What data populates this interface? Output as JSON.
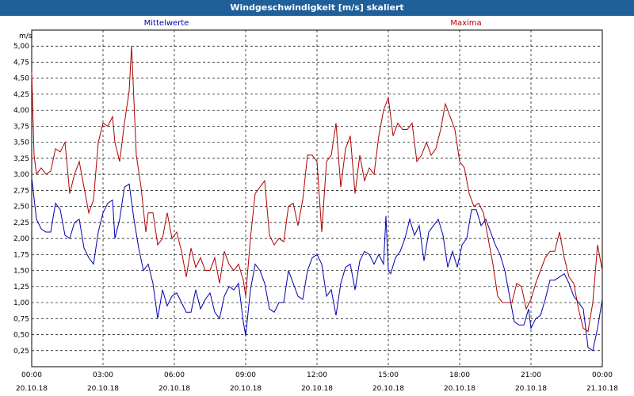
{
  "window": {
    "title": "Windgeschwindigkeit [m/s] skaliert"
  },
  "chart_data": {
    "type": "line",
    "title": "Windgeschwindigkeit [m/s] skaliert",
    "ylabel": "m/s",
    "ylim": [
      0,
      5.25
    ],
    "yticks": [
      0.25,
      0.5,
      0.75,
      1.0,
      1.25,
      1.5,
      1.75,
      2.0,
      2.25,
      2.5,
      2.75,
      3.0,
      3.25,
      3.5,
      3.75,
      4.0,
      4.25,
      4.5,
      4.75,
      5.0
    ],
    "ytick_labels": [
      "0,25",
      "0,50",
      "0,75",
      "1,00",
      "1,25",
      "1,50",
      "1,75",
      "2,00",
      "2,25",
      "2,50",
      "2,75",
      "3,00",
      "3,25",
      "3,50",
      "3,75",
      "4,00",
      "4,25",
      "4,50",
      "4,75",
      "5,00"
    ],
    "xlim": [
      0,
      24
    ],
    "xticks": [
      0,
      3,
      6,
      9,
      12,
      15,
      18,
      21,
      24
    ],
    "xtick_labels": [
      "00:00",
      "03:00",
      "06:00",
      "09:00",
      "12:00",
      "15:00",
      "18:00",
      "21:00",
      "00:00"
    ],
    "xtick_dates": [
      "20.10.18",
      "20.10.18",
      "20.10.18",
      "20.10.18",
      "20.10.18",
      "20.10.18",
      "20.10.18",
      "20.10.18",
      "21.10.18"
    ],
    "grid": true,
    "series": [
      {
        "name": "Mittelwerte",
        "color": "#0000b0",
        "points": [
          [
            0,
            2.95
          ],
          [
            0.2,
            2.3
          ],
          [
            0.4,
            2.15
          ],
          [
            0.6,
            2.1
          ],
          [
            0.8,
            2.1
          ],
          [
            1.0,
            2.55
          ],
          [
            1.2,
            2.45
          ],
          [
            1.4,
            2.05
          ],
          [
            1.6,
            2.0
          ],
          [
            1.8,
            2.25
          ],
          [
            2.0,
            2.3
          ],
          [
            2.2,
            1.85
          ],
          [
            2.4,
            1.7
          ],
          [
            2.6,
            1.6
          ],
          [
            2.8,
            2.1
          ],
          [
            3.0,
            2.4
          ],
          [
            3.2,
            2.55
          ],
          [
            3.4,
            2.6
          ],
          [
            3.5,
            2.0
          ],
          [
            3.7,
            2.3
          ],
          [
            3.9,
            2.8
          ],
          [
            4.1,
            2.85
          ],
          [
            4.3,
            2.3
          ],
          [
            4.5,
            1.85
          ],
          [
            4.7,
            1.5
          ],
          [
            4.9,
            1.6
          ],
          [
            5.1,
            1.3
          ],
          [
            5.3,
            0.75
          ],
          [
            5.5,
            1.2
          ],
          [
            5.7,
            0.95
          ],
          [
            5.9,
            1.1
          ],
          [
            6.1,
            1.15
          ],
          [
            6.3,
            1.0
          ],
          [
            6.5,
            0.85
          ],
          [
            6.7,
            0.85
          ],
          [
            6.9,
            1.2
          ],
          [
            7.1,
            0.9
          ],
          [
            7.3,
            1.05
          ],
          [
            7.5,
            1.15
          ],
          [
            7.7,
            0.85
          ],
          [
            7.9,
            0.75
          ],
          [
            8.1,
            1.1
          ],
          [
            8.3,
            1.25
          ],
          [
            8.5,
            1.2
          ],
          [
            8.7,
            1.3
          ],
          [
            8.9,
            0.7
          ],
          [
            9.0,
            0.48
          ],
          [
            9.2,
            1.2
          ],
          [
            9.4,
            1.6
          ],
          [
            9.6,
            1.5
          ],
          [
            9.8,
            1.3
          ],
          [
            10.0,
            0.9
          ],
          [
            10.2,
            0.85
          ],
          [
            10.4,
            1.0
          ],
          [
            10.6,
            1.0
          ],
          [
            10.8,
            1.5
          ],
          [
            11.0,
            1.3
          ],
          [
            11.2,
            1.1
          ],
          [
            11.4,
            1.05
          ],
          [
            11.6,
            1.5
          ],
          [
            11.8,
            1.7
          ],
          [
            12.0,
            1.75
          ],
          [
            12.2,
            1.6
          ],
          [
            12.4,
            1.1
          ],
          [
            12.6,
            1.2
          ],
          [
            12.8,
            0.8
          ],
          [
            13.0,
            1.3
          ],
          [
            13.2,
            1.55
          ],
          [
            13.4,
            1.6
          ],
          [
            13.6,
            1.2
          ],
          [
            13.8,
            1.65
          ],
          [
            14.0,
            1.8
          ],
          [
            14.2,
            1.75
          ],
          [
            14.4,
            1.6
          ],
          [
            14.6,
            1.75
          ],
          [
            14.8,
            1.6
          ],
          [
            14.9,
            2.35
          ],
          [
            15.0,
            1.5
          ],
          [
            15.1,
            1.45
          ],
          [
            15.3,
            1.7
          ],
          [
            15.5,
            1.8
          ],
          [
            15.7,
            2.0
          ],
          [
            15.9,
            2.3
          ],
          [
            16.1,
            2.05
          ],
          [
            16.3,
            2.2
          ],
          [
            16.5,
            1.65
          ],
          [
            16.7,
            2.1
          ],
          [
            16.9,
            2.2
          ],
          [
            17.1,
            2.3
          ],
          [
            17.3,
            2.05
          ],
          [
            17.5,
            1.55
          ],
          [
            17.7,
            1.8
          ],
          [
            17.9,
            1.55
          ],
          [
            18.1,
            1.9
          ],
          [
            18.3,
            2.0
          ],
          [
            18.5,
            2.45
          ],
          [
            18.7,
            2.45
          ],
          [
            18.9,
            2.2
          ],
          [
            19.1,
            2.3
          ],
          [
            19.3,
            2.1
          ],
          [
            19.5,
            1.9
          ],
          [
            19.7,
            1.75
          ],
          [
            19.9,
            1.5
          ],
          [
            20.1,
            1.1
          ],
          [
            20.3,
            0.7
          ],
          [
            20.5,
            0.65
          ],
          [
            20.7,
            0.65
          ],
          [
            20.9,
            0.9
          ],
          [
            21.0,
            0.6
          ],
          [
            21.2,
            0.75
          ],
          [
            21.4,
            0.8
          ],
          [
            21.6,
            1.05
          ],
          [
            21.8,
            1.35
          ],
          [
            22.0,
            1.35
          ],
          [
            22.2,
            1.4
          ],
          [
            22.4,
            1.45
          ],
          [
            22.6,
            1.3
          ],
          [
            22.8,
            1.1
          ],
          [
            23.0,
            1.0
          ],
          [
            23.2,
            0.9
          ],
          [
            23.4,
            0.3
          ],
          [
            23.6,
            0.25
          ],
          [
            23.8,
            0.6
          ],
          [
            24.0,
            1.05
          ]
        ]
      },
      {
        "name": "Maxima",
        "color": "#b00000",
        "points": [
          [
            0,
            4.6
          ],
          [
            0.1,
            3.3
          ],
          [
            0.2,
            3.0
          ],
          [
            0.4,
            3.1
          ],
          [
            0.6,
            3.0
          ],
          [
            0.8,
            3.05
          ],
          [
            1.0,
            3.4
          ],
          [
            1.2,
            3.35
          ],
          [
            1.4,
            3.5
          ],
          [
            1.6,
            2.7
          ],
          [
            1.8,
            3.0
          ],
          [
            2.0,
            3.2
          ],
          [
            2.2,
            2.8
          ],
          [
            2.4,
            2.4
          ],
          [
            2.6,
            2.6
          ],
          [
            2.8,
            3.5
          ],
          [
            3.0,
            3.8
          ],
          [
            3.2,
            3.75
          ],
          [
            3.4,
            3.9
          ],
          [
            3.5,
            3.5
          ],
          [
            3.7,
            3.2
          ],
          [
            3.9,
            3.8
          ],
          [
            4.1,
            4.3
          ],
          [
            4.2,
            5.0
          ],
          [
            4.4,
            3.3
          ],
          [
            4.6,
            2.8
          ],
          [
            4.8,
            2.1
          ],
          [
            4.9,
            2.4
          ],
          [
            5.1,
            2.4
          ],
          [
            5.3,
            1.9
          ],
          [
            5.5,
            2.0
          ],
          [
            5.7,
            2.4
          ],
          [
            5.9,
            2.0
          ],
          [
            6.1,
            2.1
          ],
          [
            6.3,
            1.8
          ],
          [
            6.5,
            1.4
          ],
          [
            6.7,
            1.85
          ],
          [
            6.9,
            1.55
          ],
          [
            7.1,
            1.7
          ],
          [
            7.3,
            1.5
          ],
          [
            7.5,
            1.5
          ],
          [
            7.7,
            1.7
          ],
          [
            7.9,
            1.3
          ],
          [
            8.1,
            1.8
          ],
          [
            8.3,
            1.6
          ],
          [
            8.5,
            1.5
          ],
          [
            8.7,
            1.6
          ],
          [
            8.9,
            1.35
          ],
          [
            9.0,
            1.1
          ],
          [
            9.2,
            2.0
          ],
          [
            9.4,
            2.7
          ],
          [
            9.6,
            2.8
          ],
          [
            9.8,
            2.9
          ],
          [
            10.0,
            2.05
          ],
          [
            10.2,
            1.9
          ],
          [
            10.4,
            2.0
          ],
          [
            10.6,
            1.95
          ],
          [
            10.8,
            2.5
          ],
          [
            11.0,
            2.55
          ],
          [
            11.2,
            2.2
          ],
          [
            11.4,
            2.6
          ],
          [
            11.6,
            3.3
          ],
          [
            11.8,
            3.3
          ],
          [
            12.0,
            3.2
          ],
          [
            12.2,
            2.1
          ],
          [
            12.4,
            3.2
          ],
          [
            12.6,
            3.3
          ],
          [
            12.8,
            3.8
          ],
          [
            13.0,
            2.8
          ],
          [
            13.2,
            3.4
          ],
          [
            13.4,
            3.6
          ],
          [
            13.6,
            2.7
          ],
          [
            13.8,
            3.3
          ],
          [
            14.0,
            2.9
          ],
          [
            14.2,
            3.1
          ],
          [
            14.4,
            3.0
          ],
          [
            14.6,
            3.6
          ],
          [
            14.8,
            4.0
          ],
          [
            15.0,
            4.2
          ],
          [
            15.2,
            3.6
          ],
          [
            15.4,
            3.8
          ],
          [
            15.6,
            3.7
          ],
          [
            15.8,
            3.7
          ],
          [
            16.0,
            3.8
          ],
          [
            16.2,
            3.2
          ],
          [
            16.4,
            3.3
          ],
          [
            16.6,
            3.5
          ],
          [
            16.8,
            3.3
          ],
          [
            17.0,
            3.4
          ],
          [
            17.2,
            3.7
          ],
          [
            17.4,
            4.1
          ],
          [
            17.6,
            3.9
          ],
          [
            17.8,
            3.7
          ],
          [
            18.0,
            3.2
          ],
          [
            18.2,
            3.1
          ],
          [
            18.4,
            2.7
          ],
          [
            18.6,
            2.5
          ],
          [
            18.8,
            2.55
          ],
          [
            19.0,
            2.4
          ],
          [
            19.2,
            2.0
          ],
          [
            19.4,
            1.6
          ],
          [
            19.6,
            1.1
          ],
          [
            19.8,
            1.0
          ],
          [
            20.0,
            1.0
          ],
          [
            20.2,
            1.0
          ],
          [
            20.4,
            1.3
          ],
          [
            20.6,
            1.25
          ],
          [
            20.8,
            0.9
          ],
          [
            21.0,
            1.05
          ],
          [
            21.2,
            1.3
          ],
          [
            21.4,
            1.5
          ],
          [
            21.6,
            1.7
          ],
          [
            21.8,
            1.8
          ],
          [
            22.0,
            1.8
          ],
          [
            22.2,
            2.1
          ],
          [
            22.4,
            1.7
          ],
          [
            22.6,
            1.4
          ],
          [
            22.8,
            1.3
          ],
          [
            23.0,
            0.9
          ],
          [
            23.2,
            0.6
          ],
          [
            23.4,
            0.55
          ],
          [
            23.6,
            1.0
          ],
          [
            23.8,
            1.9
          ],
          [
            24.0,
            1.5
          ]
        ]
      }
    ]
  }
}
